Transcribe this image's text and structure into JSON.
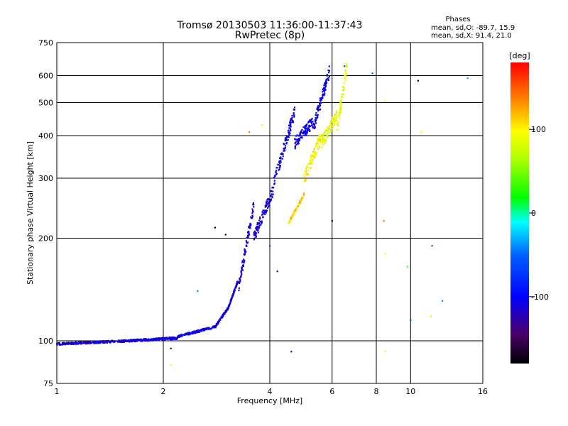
{
  "chart_data": {
    "type": "scatter",
    "title": "Tromsø 20130503 11:36:00-11:37:43",
    "subtitle": "RwPretec (8p)",
    "xlabel": "Frequency [MHz]",
    "ylabel": "Stationary phase Virtual Height [km]",
    "xscale": "log",
    "yscale": "log",
    "xlim": [
      1,
      16
    ],
    "ylim": [
      75,
      750
    ],
    "xticks": [
      1,
      2,
      4,
      6,
      8,
      10,
      16
    ],
    "xtick_labels": [
      "1",
      "2",
      "4",
      "6",
      "8",
      "10",
      "16"
    ],
    "yticks": [
      75,
      100,
      200,
      300,
      400,
      500,
      600,
      750
    ],
    "ytick_labels": [
      "75",
      "100",
      "200",
      "300",
      "400",
      "500",
      "600",
      "750"
    ],
    "grid": true,
    "phases_box": {
      "title": "Phases",
      "line1": "mean, sd,O: -89.7, 15.9",
      "line2": "mean, sd,X:  91.4, 21.0"
    },
    "colorbar": {
      "label": "[deg]",
      "range": [
        -180,
        180
      ],
      "ticks": [
        100,
        0,
        -100
      ],
      "tick_labels": [
        "100",
        "0",
        "-100"
      ]
    },
    "series": [
      {
        "name": "O-mode",
        "mean_phase": -89.7,
        "sd_phase": 15.9,
        "segments": [
          {
            "f0": 1.0,
            "f1": 1.6,
            "h0": 98,
            "h1": 100,
            "phase": -115
          },
          {
            "f0": 1.6,
            "f1": 2.2,
            "h0": 100,
            "h1": 102,
            "phase": -110
          },
          {
            "f0": 2.2,
            "f1": 2.8,
            "h0": 103,
            "h1": 110,
            "phase": -105
          },
          {
            "f0": 2.8,
            "f1": 3.05,
            "h0": 110,
            "h1": 125,
            "phase": -110
          },
          {
            "f0": 3.05,
            "f1": 3.25,
            "h0": 125,
            "h1": 150,
            "phase": -112
          },
          {
            "f0": 3.25,
            "f1": 3.6,
            "h0": 140,
            "h1": 250,
            "phase": -115
          },
          {
            "f0": 3.6,
            "f1": 4.1,
            "h0": 200,
            "h1": 280,
            "phase": -112
          },
          {
            "f0": 4.1,
            "f1": 4.7,
            "h0": 290,
            "h1": 470,
            "phase": -110
          },
          {
            "f0": 4.7,
            "f1": 5.3,
            "h0": 380,
            "h1": 440,
            "phase": -108
          },
          {
            "f0": 5.3,
            "f1": 5.9,
            "h0": 420,
            "h1": 620,
            "phase": -110
          }
        ]
      },
      {
        "name": "X-mode",
        "mean_phase": 91.4,
        "sd_phase": 21.0,
        "segments": [
          {
            "f0": 4.5,
            "f1": 5.0,
            "h0": 220,
            "h1": 270,
            "phase": 110
          },
          {
            "f0": 5.0,
            "f1": 5.6,
            "h0": 300,
            "h1": 400,
            "phase": 95
          },
          {
            "f0": 5.6,
            "f1": 6.2,
            "h0": 380,
            "h1": 460,
            "phase": 90
          },
          {
            "f0": 6.2,
            "f1": 6.6,
            "h0": 420,
            "h1": 640,
            "phase": 85
          }
        ]
      }
    ],
    "outliers": [
      {
        "f": 8.5,
        "h": 505,
        "phase": 100
      },
      {
        "f": 8.4,
        "h": 225,
        "phase": 140
      },
      {
        "f": 8.5,
        "h": 180,
        "phase": 100
      },
      {
        "f": 8.5,
        "h": 93,
        "phase": 100
      },
      {
        "f": 9.8,
        "h": 165,
        "phase": 40
      },
      {
        "f": 10.0,
        "h": 115,
        "phase": -60
      },
      {
        "f": 10.5,
        "h": 580,
        "phase": -180
      },
      {
        "f": 10.7,
        "h": 410,
        "phase": 100
      },
      {
        "f": 11.5,
        "h": 190,
        "phase": -60
      },
      {
        "f": 11.4,
        "h": 118,
        "phase": 100
      },
      {
        "f": 12.3,
        "h": 131,
        "phase": -40
      },
      {
        "f": 14.5,
        "h": 590,
        "phase": -30
      },
      {
        "f": 7.8,
        "h": 610,
        "phase": -50
      },
      {
        "f": 6.0,
        "h": 225,
        "phase": -180
      },
      {
        "f": 6.5,
        "h": 640,
        "phase": -60
      },
      {
        "f": 4.0,
        "h": 190,
        "phase": -60
      },
      {
        "f": 4.2,
        "h": 160,
        "phase": -100
      },
      {
        "f": 4.6,
        "h": 93,
        "phase": -100
      },
      {
        "f": 3.8,
        "h": 430,
        "phase": 100
      },
      {
        "f": 3.5,
        "h": 410,
        "phase": 140
      },
      {
        "f": 2.8,
        "h": 215,
        "phase": -180
      },
      {
        "f": 3.0,
        "h": 205,
        "phase": -180
      },
      {
        "f": 2.5,
        "h": 140,
        "phase": -40
      },
      {
        "f": 2.1,
        "h": 85,
        "phase": 100
      },
      {
        "f": 2.1,
        "h": 95,
        "phase": -150
      }
    ]
  }
}
